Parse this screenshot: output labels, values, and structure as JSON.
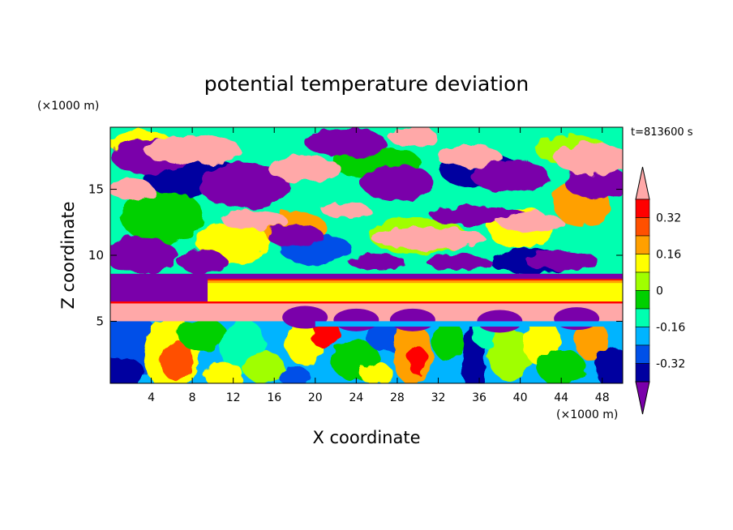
{
  "chart_data": {
    "type": "heatmap",
    "title": "potential temperature deviation",
    "xlabel": "X coordinate",
    "ylabel": "Z coordinate",
    "x_unit": "(×1000 m)",
    "y_unit": "(×1000 m)",
    "time_label": "t=813600 s",
    "xlim": [
      0,
      50
    ],
    "ylim": [
      0.3,
      19.7
    ],
    "x_ticks": [
      "4",
      "8",
      "12",
      "16",
      "20",
      "24",
      "28",
      "32",
      "36",
      "40",
      "44",
      "48"
    ],
    "x_tick_values": [
      4,
      8,
      12,
      16,
      20,
      24,
      28,
      32,
      36,
      40,
      44,
      48
    ],
    "y_ticks": [
      "5",
      "10",
      "15"
    ],
    "y_tick_values": [
      5,
      10,
      15
    ],
    "colorbar": {
      "levels": [
        -0.4,
        -0.32,
        -0.24,
        -0.16,
        -0.08,
        0,
        0.08,
        0.16,
        0.24,
        0.32,
        0.4
      ],
      "colors": [
        "#7a00aa",
        "#0000a0",
        "#0050e8",
        "#00b4ff",
        "#00ffb0",
        "#00d000",
        "#a0ff00",
        "#ffff00",
        "#ffa000",
        "#ff5000",
        "#ff0000",
        "#ffa8a8"
      ],
      "tick_labels": [
        "0.32",
        "0.16",
        "0",
        "-0.16",
        "-0.32"
      ],
      "tick_values": [
        0.32,
        0.16,
        0,
        -0.16,
        -0.32
      ],
      "extend": "both"
    }
  }
}
